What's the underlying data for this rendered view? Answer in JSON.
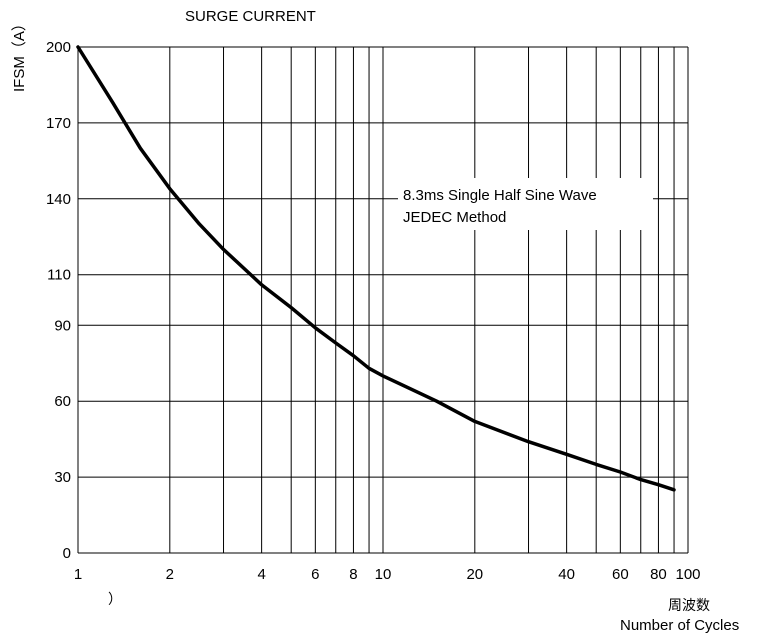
{
  "chart_data": {
    "type": "line",
    "title": "SURGE CURRENT",
    "ylabel": "IFSM（A）",
    "xlabel_cn": "周波数",
    "xlabel": "Number of Cycles",
    "stray_mark": "）",
    "x_scale": "log",
    "xlim": [
      1,
      100
    ],
    "ylim": [
      0,
      200
    ],
    "x_ticks": [
      1,
      2,
      3,
      4,
      5,
      6,
      7,
      8,
      9,
      10,
      20,
      30,
      40,
      50,
      60,
      70,
      80,
      90,
      100
    ],
    "x_tick_labels": [
      {
        "value": 1,
        "label": "1"
      },
      {
        "value": 2,
        "label": "2"
      },
      {
        "value": 4,
        "label": "4"
      },
      {
        "value": 6,
        "label": "6"
      },
      {
        "value": 8,
        "label": "8"
      },
      {
        "value": 10,
        "label": "10"
      },
      {
        "value": 20,
        "label": "20"
      },
      {
        "value": 40,
        "label": "40"
      },
      {
        "value": 60,
        "label": "60"
      },
      {
        "value": 80,
        "label": "80"
      },
      {
        "value": 100,
        "label": "100"
      }
    ],
    "y_ticks": [
      {
        "value": 0,
        "label": "0"
      },
      {
        "value": 30,
        "label": "30"
      },
      {
        "value": 60,
        "label": "60"
      },
      {
        "value": 90,
        "label": "90"
      },
      {
        "value": 110,
        "label": "110"
      },
      {
        "value": 140,
        "label": "140"
      },
      {
        "value": 170,
        "label": "170"
      },
      {
        "value": 200,
        "label": "200"
      }
    ],
    "annotation": [
      "8.3ms Single Half Sine Wave",
      "JEDEC Method"
    ],
    "grid": true,
    "series": [
      {
        "x": [
          1,
          1.3,
          1.6,
          2,
          2.5,
          3,
          4,
          5,
          6,
          7,
          8,
          9,
          10,
          15,
          20,
          30,
          40,
          50,
          60,
          70,
          80,
          90
        ],
        "y": [
          200,
          178,
          160,
          144,
          130,
          120,
          106,
          97,
          89,
          83,
          78,
          73,
          70,
          60,
          52,
          44,
          39,
          35,
          32,
          29,
          27,
          25
        ],
        "color": "#000000"
      }
    ]
  }
}
